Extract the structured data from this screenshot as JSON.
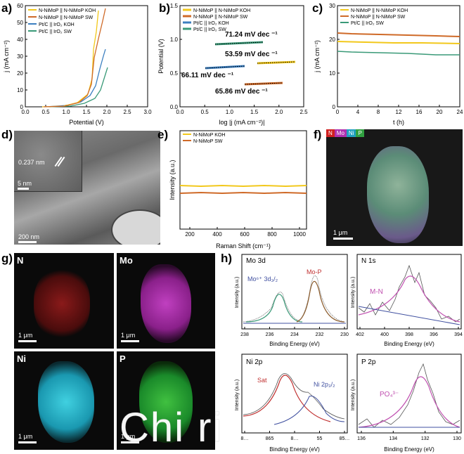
{
  "panel_labels": {
    "a": "a)",
    "b": "b)",
    "c": "c)",
    "d": "d)",
    "e": "e)",
    "f": "f)",
    "g": "g)",
    "h": "h)"
  },
  "colors": {
    "yellow": "#f2c81c",
    "orange": "#cf6a28",
    "blue": "#3c7fc0",
    "green": "#3a9a78",
    "fitred": "#c03030",
    "fitpurple": "#c050b0",
    "envblue": "#4050a0"
  },
  "panel_a": {
    "xlabel": "Potential (V)",
    "ylabel": "j (mA cm⁻²)",
    "xticks": [
      "0.0",
      "0.5",
      "1.0",
      "1.5",
      "2.0",
      "2.5",
      "3.0"
    ],
    "yticks": [
      "0",
      "10",
      "20",
      "30",
      "40",
      "50",
      "60"
    ],
    "legend": [
      "N-NiMoP || N-NiMoP KOH",
      "N-NiMoP || N-NiMoP SW",
      "Pt/C || IrO₂ KOH",
      "Pt/C || IrO₂ SW"
    ]
  },
  "panel_b": {
    "xlabel": "log |j (mA cm⁻²)|",
    "ylabel": "Potential (V)",
    "xticks": [
      "0.0",
      "0.5",
      "1.0",
      "1.5",
      "2.0",
      "2.5"
    ],
    "yticks": [
      "0.0",
      "0.5",
      "1.0",
      "1.5"
    ],
    "legend": [
      "N-NiMoP || N-NiMoP KOH",
      "N-NiMoP || N-NiMoP SW",
      "Pt/C || IrO₂ KOH",
      "Pt/C || IrO₂ SW"
    ],
    "annotations": [
      "71.24 mV dec ⁻¹",
      "53.59 mV dec ⁻¹",
      "66.11 mV dec ⁻¹",
      "65.86 mV dec ⁻¹"
    ]
  },
  "panel_c": {
    "xlabel": "t (h)",
    "ylabel": "j (mA cm⁻²)",
    "xticks": [
      "0",
      "4",
      "8",
      "12",
      "16",
      "20",
      "24"
    ],
    "yticks": [
      "0",
      "10",
      "20",
      "30"
    ],
    "legend": [
      "N-NiMoP || N-NiMoP KOH",
      "N-NiMoP || N-NiMoP SW",
      "Pt/C || IrO₂ SW"
    ]
  },
  "panel_d": {
    "inset_label": "0.237 nm",
    "inset_scale": "5 nm",
    "scale": "200 nm"
  },
  "panel_e": {
    "xlabel": "Raman Shift (cm⁻¹)",
    "ylabel": "Intensity (a.u.)",
    "xticks": [
      "200",
      "400",
      "600",
      "800",
      "1000"
    ],
    "legend": [
      "N-NiMoP KOH",
      "N-NiMoP SW"
    ]
  },
  "panel_f": {
    "elements": [
      "N",
      "Mo",
      "Ni",
      "P"
    ],
    "scale": "1 μm"
  },
  "panel_g": {
    "maps": [
      {
        "label": "N",
        "scale": "1 μm"
      },
      {
        "label": "Mo",
        "scale": "1 μm"
      },
      {
        "label": "Ni",
        "scale": "1 μm"
      },
      {
        "label": "P",
        "scale": "1 μm"
      }
    ]
  },
  "panel_h": {
    "mo3d": {
      "title": "Mo 3d",
      "peak1": "Mo⁶⁺ 3d₃/₂",
      "peak2": "Mo-P",
      "xlabel": "Binding Energy (eV)",
      "ylabel": "Intensity (a.u.)",
      "xticks": [
        "238",
        "236",
        "234",
        "232",
        "230"
      ]
    },
    "n1s": {
      "title": "N 1s",
      "peak1": "M-N",
      "xlabel": "Binding Energy (eV)",
      "ylabel": "Intensity (a.u.)",
      "xticks": [
        "402",
        "400",
        "398",
        "396",
        "394"
      ]
    },
    "ni2p": {
      "title": "Ni 2p",
      "peak1": "Sat",
      "peak2": "Ni 2p₃/₂",
      "xlabel": "Binding Energy (eV)",
      "ylabel": "Intensity (a.u.)",
      "xticks": [
        "8…",
        "865",
        "8…",
        "55",
        "85…"
      ]
    },
    "p2p": {
      "title": "P 2p",
      "peak1": "PO₄³⁻",
      "xlabel": "Binding Energy (eV)",
      "ylabel": "Intensity (a.u.)",
      "xticks": [
        "136",
        "134",
        "132",
        "130"
      ]
    }
  },
  "watermark": "Chi ri"
}
